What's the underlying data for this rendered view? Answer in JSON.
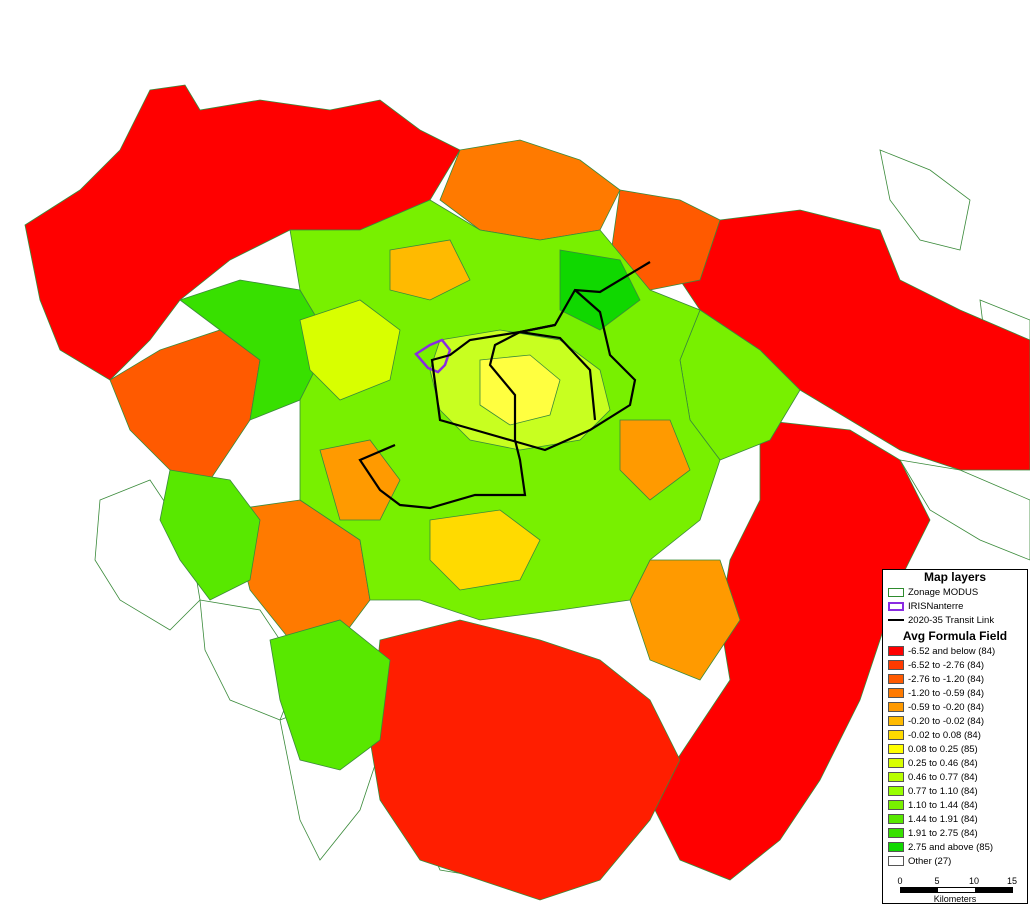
{
  "map": {
    "transit_color": "#000000",
    "iris_color": "#8a2be2",
    "zone_border_color": "#3a8a3a"
  },
  "legend": {
    "layers_title": "Map layers",
    "layers": [
      {
        "label": "Zonage MODUS",
        "kind": "zone",
        "color": "#2e8b2e"
      },
      {
        "label": "IRISNanterre",
        "kind": "iris",
        "color": "#8a2be2"
      },
      {
        "label": "2020-35 Transit Link",
        "kind": "line",
        "color": "#000000"
      }
    ],
    "classes_title": "Avg Formula Field",
    "classes": [
      {
        "label": "-6.52 and below (84)",
        "color": "#ff0000"
      },
      {
        "label": "-6.52 to -2.76 (84)",
        "color": "#ff3a00"
      },
      {
        "label": "-2.76 to -1.20 (84)",
        "color": "#ff5a00"
      },
      {
        "label": "-1.20 to -0.59 (84)",
        "color": "#ff7a00"
      },
      {
        "label": "-0.59 to -0.20 (84)",
        "color": "#ff9a00"
      },
      {
        "label": "-0.20 to -0.02 (84)",
        "color": "#ffba00"
      },
      {
        "label": "-0.02 to 0.08 (84)",
        "color": "#ffda00"
      },
      {
        "label": "0.08 to 0.25 (85)",
        "color": "#ffff00"
      },
      {
        "label": "0.25 to 0.46 (84)",
        "color": "#d8ff00"
      },
      {
        "label": "0.46 to 0.77 (84)",
        "color": "#b8ff00"
      },
      {
        "label": "0.77 to 1.10 (84)",
        "color": "#98ff00"
      },
      {
        "label": "1.10 to 1.44 (84)",
        "color": "#78f000"
      },
      {
        "label": "1.44 to 1.91 (84)",
        "color": "#58e800"
      },
      {
        "label": "1.91 to 2.75 (84)",
        "color": "#38e000"
      },
      {
        "label": "2.75 and above (85)",
        "color": "#10d800"
      },
      {
        "label": "Other (27)",
        "color": "#ffffff"
      }
    ]
  },
  "scale": {
    "ticks": [
      "0",
      "5",
      "10",
      "15"
    ],
    "unit": "Kilometers"
  }
}
